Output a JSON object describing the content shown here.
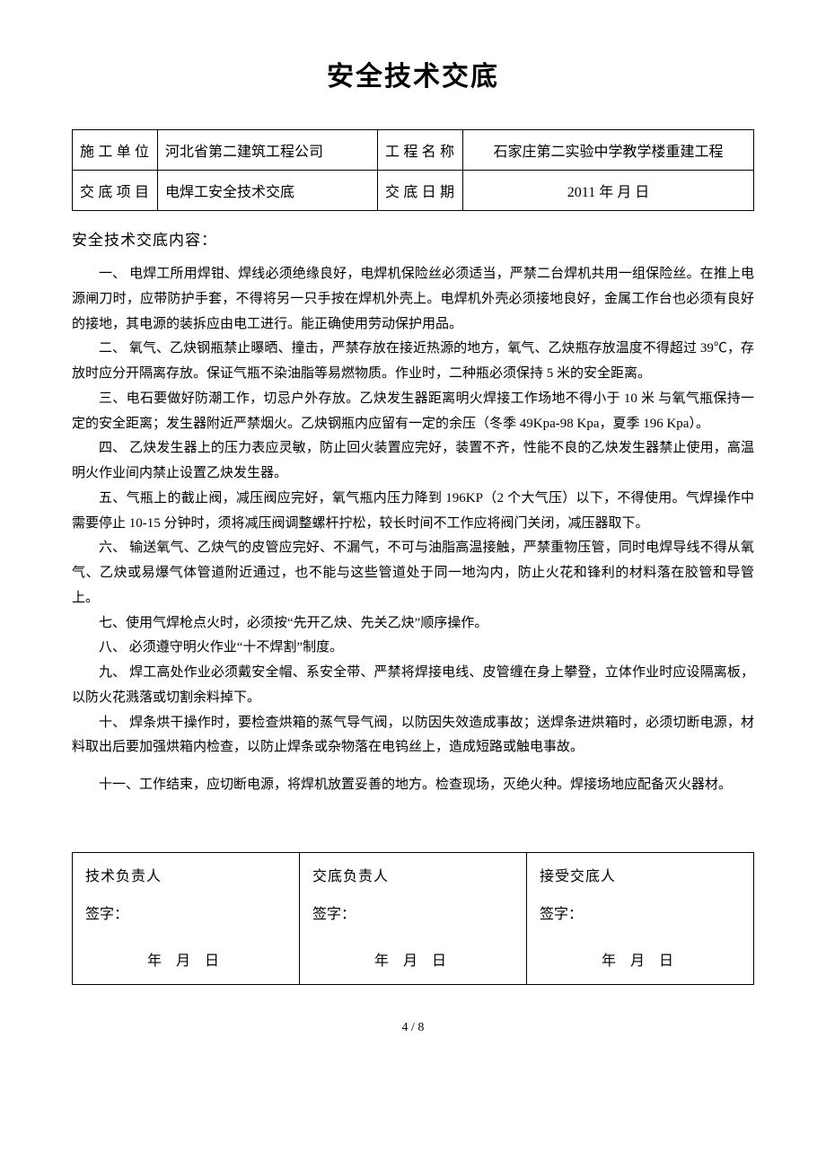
{
  "title": "安全技术交底",
  "header": {
    "unit_label": "施工单位",
    "unit_value": "河北省第二建筑工程公司",
    "project_label": "工程名称",
    "project_value": "石家庄第二实验中学教学楼重建工程",
    "item_label": "交底项目",
    "item_value": "电焊工安全技术交底",
    "date_label": "交底日期",
    "date_value": "2011 年  月  日"
  },
  "section_heading": "安全技术交底内容：",
  "paragraphs": [
    "一、 电焊工所用焊钳、焊线必须绝缘良好，电焊机保险丝必须适当，严禁二台焊机共用一组保险丝。在推上电源闸刀时，应带防护手套，不得将另一只手按在焊机外壳上。电焊机外壳必须接地良好，金属工作台也必须有良好的接地，其电源的装拆应由电工进行。能正确使用劳动保护用品。",
    "二、 氧气、乙炔钢瓶禁止曝晒、撞击，严禁存放在接近热源的地方，氧气、乙炔瓶存放温度不得超过 39℃，存放时应分开隔离存放。保证气瓶不染油脂等易燃物质。作业时，二种瓶必须保持 5 米的安全距离。",
    "三、电石要做好防潮工作，切忌户外存放。乙炔发生器距离明火焊接工作场地不得小于 10 米  与氧气瓶保持一定的安全距离；发生器附近严禁烟火。乙炔钢瓶内应留有一定的余压（冬季 49Kpa-98 Kpa，夏季 196 Kpa）。",
    "四、 乙炔发生器上的压力表应灵敏，防止回火装置应完好，装置不齐，性能不良的乙炔发生器禁止使用，高温明火作业间内禁止设置乙炔发生器。",
    "五、气瓶上的截止阀，减压阀应完好，氧气瓶内压力降到 196KP（2 个大气压）以下，不得使用。气焊操作中需要停止 10-15 分钟时，须将减压阀调整螺杆拧松，较长时间不工作应将阀门关闭，减压器取下。",
    "六、 输送氧气、乙炔气的皮管应完好、不漏气，不可与油脂高温接触，严禁重物压管，同时电焊导线不得从氧气、乙炔或易爆气体管道附近通过，也不能与这些管道处于同一地沟内，防止火花和锋利的材料落在胶管和导管上。",
    "七、使用气焊枪点火时，必须按“先开乙炔、先关乙炔”顺序操作。",
    "八、 必须遵守明火作业“十不焊割”制度。",
    "九、 焊工高处作业必须戴安全帽、系安全带、严禁将焊接电线、皮管缠在身上攀登，立体作业时应设隔离板，以防火花溅落或切割余料掉下。",
    "十、 焊条烘干操作时，要检查烘箱的蒸气导气阀，以防因失效造成事故；送焊条进烘箱时，必须切断电源，材料取出后要加强烘箱内检查，以防止焊条或杂物落在电钨丝上，造成短路或触电事故。",
    "十一、工作结束，应切断电源，将焊机放置妥善的地方。检查现场，灭绝火种。焊接场地应配备灭火器材。"
  ],
  "last_has_gap": true,
  "signatures": {
    "roles": [
      "技术负责人",
      "交底负责人",
      "接受交底人"
    ],
    "sign_label": "签字：",
    "date_line": "年  月  日"
  },
  "footer": "4 / 8"
}
